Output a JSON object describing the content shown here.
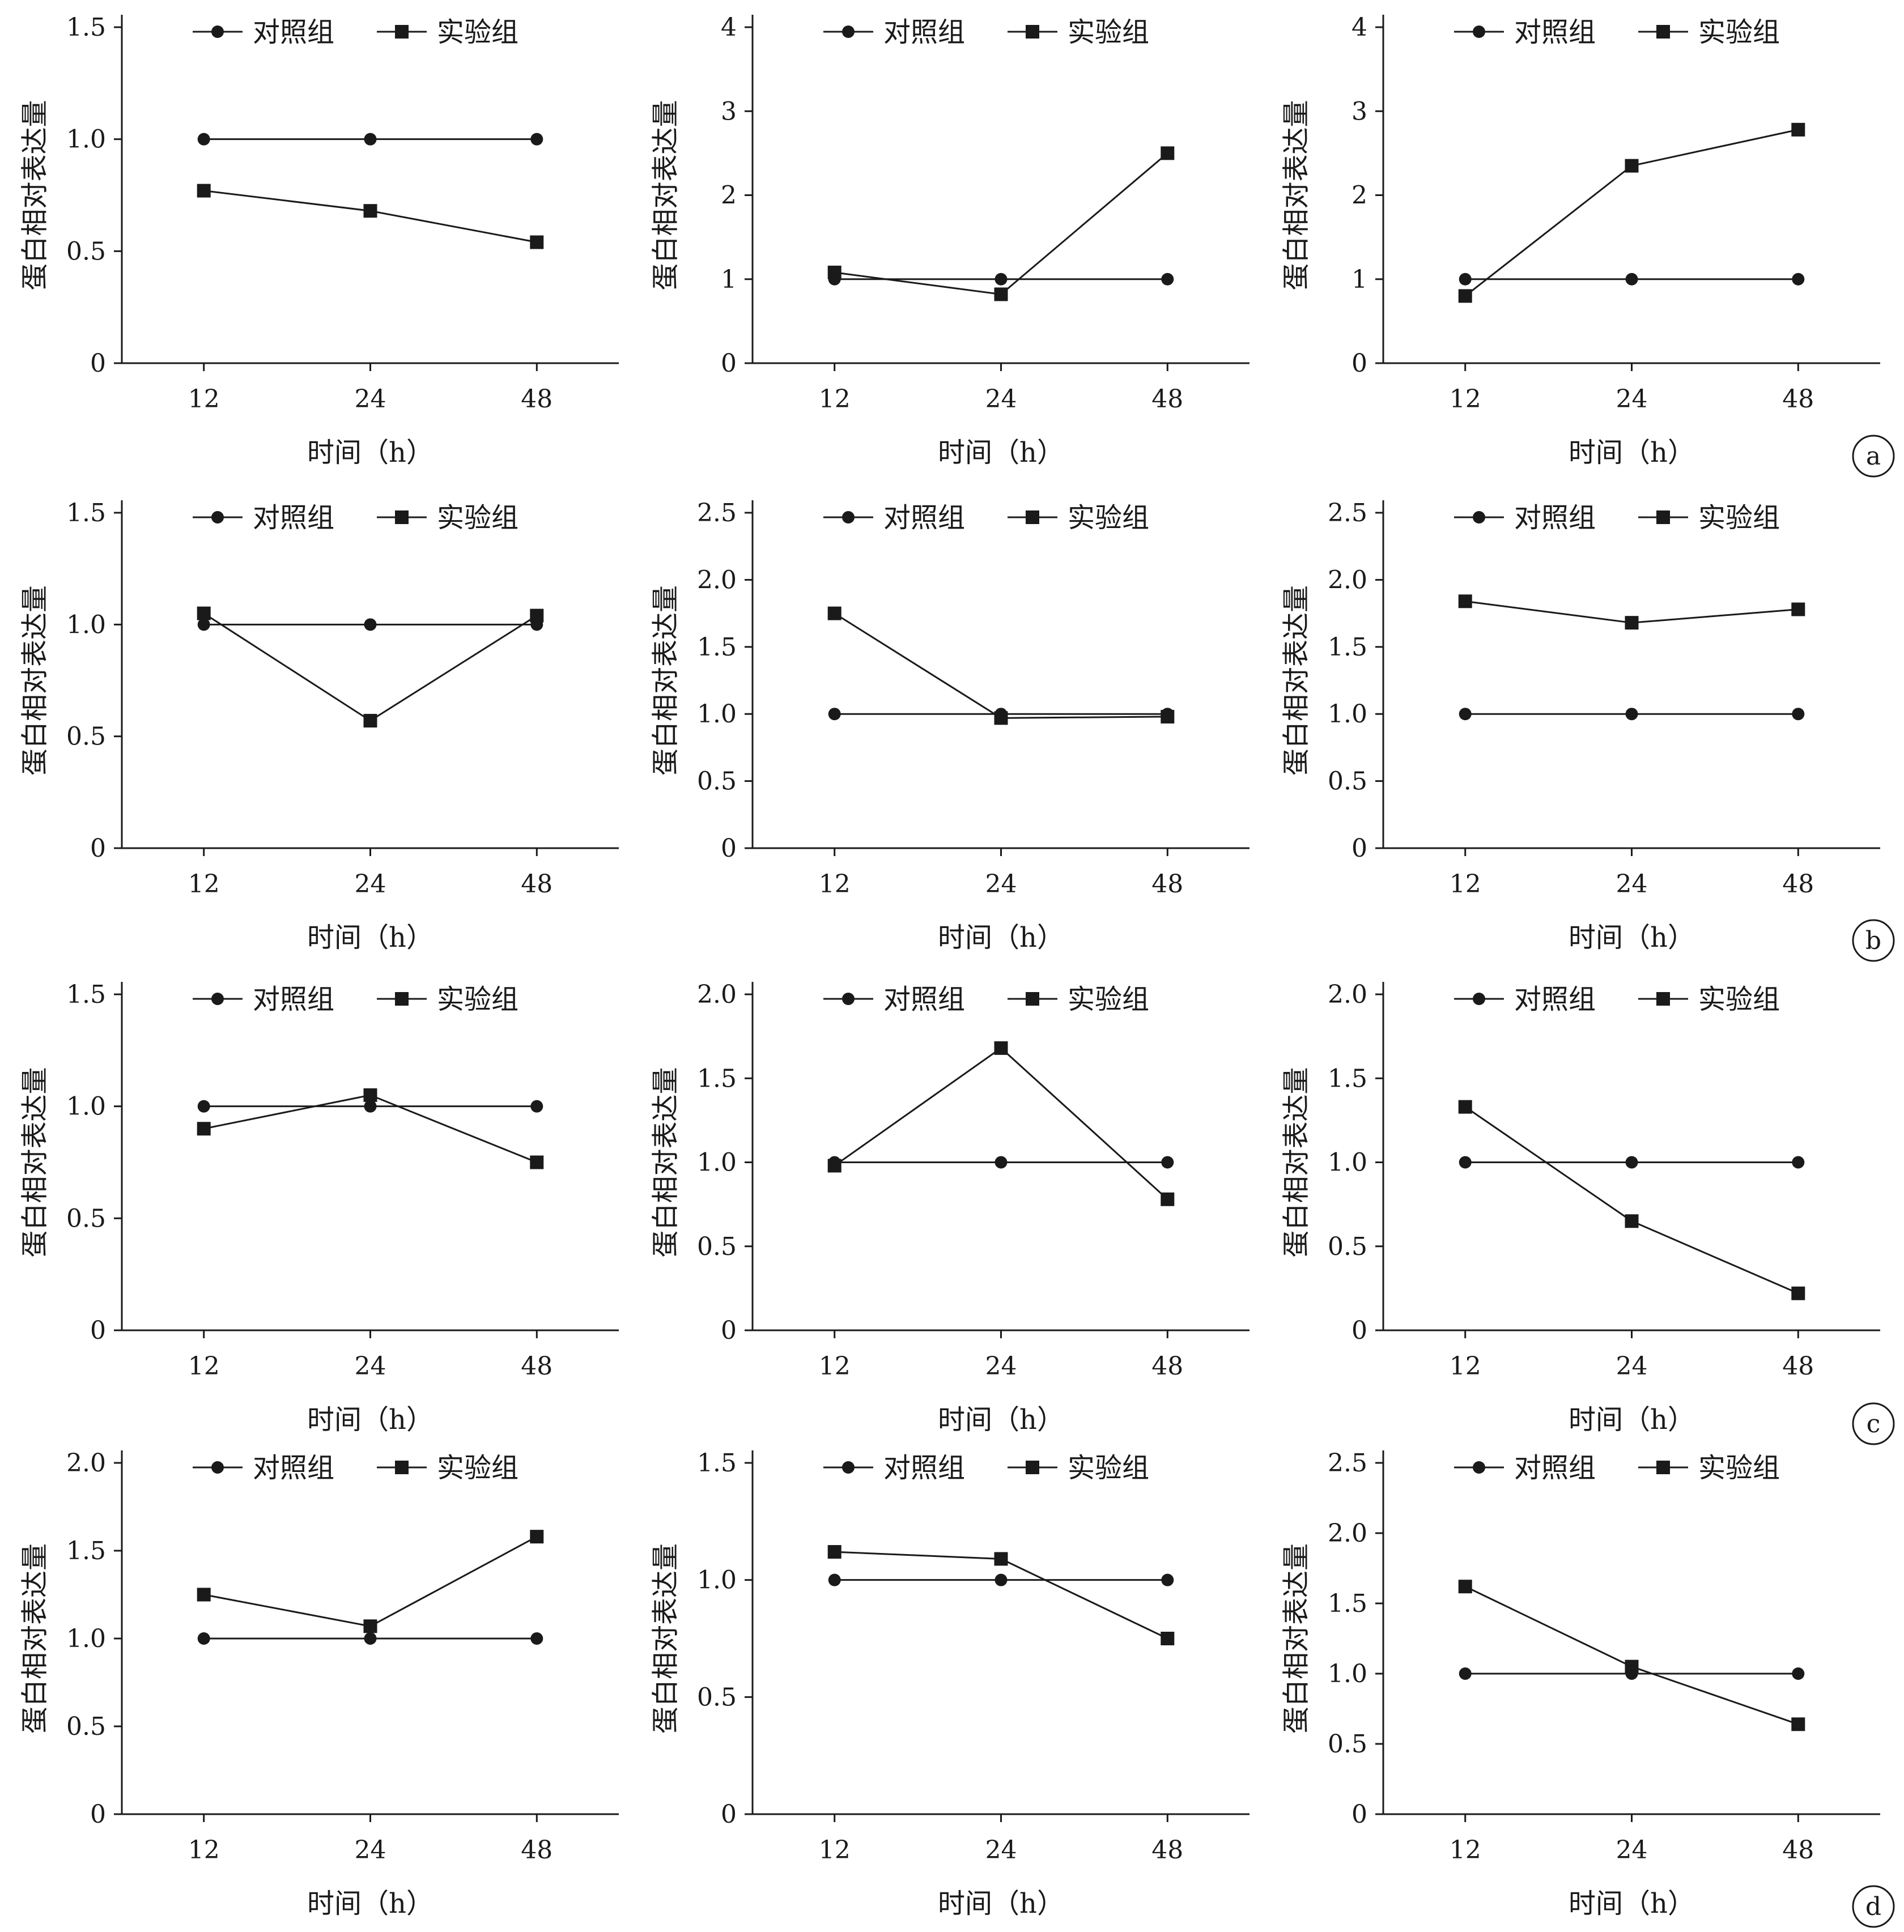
{
  "figure": {
    "panel_labels": [
      "a",
      "b",
      "c",
      "d"
    ]
  },
  "colors": {
    "ink": "#1a1a1a",
    "background": "#ffffff"
  },
  "chart_data": [
    {
      "type": "line",
      "row": 0,
      "col": 0,
      "x": [
        12,
        24,
        48
      ],
      "categories": [
        "12",
        "24",
        "48"
      ],
      "xlabel": "时间（h）",
      "ylabel": "蛋白相对表达量",
      "ylim": [
        0,
        1.5
      ],
      "yticks": [
        "0",
        "0.5",
        "1.0",
        "1.5"
      ],
      "ytick_values": [
        0,
        0.5,
        1.0,
        1.5
      ],
      "legend_position": "top",
      "series": [
        {
          "name": "对照组",
          "marker": "circle",
          "values": [
            1.0,
            1.0,
            1.0
          ]
        },
        {
          "name": "实验组",
          "marker": "square",
          "values": [
            0.77,
            0.68,
            0.54
          ]
        }
      ]
    },
    {
      "type": "line",
      "row": 0,
      "col": 1,
      "x": [
        12,
        24,
        48
      ],
      "categories": [
        "12",
        "24",
        "48"
      ],
      "xlabel": "时间（h）",
      "ylabel": "蛋白相对表达量",
      "ylim": [
        0,
        4
      ],
      "yticks": [
        "0",
        "1",
        "2",
        "3",
        "4"
      ],
      "ytick_values": [
        0,
        1,
        2,
        3,
        4
      ],
      "legend_position": "top",
      "series": [
        {
          "name": "对照组",
          "marker": "circle",
          "values": [
            1.0,
            1.0,
            1.0
          ]
        },
        {
          "name": "实验组",
          "marker": "square",
          "values": [
            1.08,
            0.82,
            2.5
          ]
        }
      ]
    },
    {
      "type": "line",
      "row": 0,
      "col": 2,
      "x": [
        12,
        24,
        48
      ],
      "categories": [
        "12",
        "24",
        "48"
      ],
      "xlabel": "时间（h）",
      "ylabel": "蛋白相对表达量",
      "ylim": [
        0,
        4
      ],
      "yticks": [
        "0",
        "1",
        "2",
        "3",
        "4"
      ],
      "ytick_values": [
        0,
        1,
        2,
        3,
        4
      ],
      "legend_position": "top",
      "series": [
        {
          "name": "对照组",
          "marker": "circle",
          "values": [
            1.0,
            1.0,
            1.0
          ]
        },
        {
          "name": "实验组",
          "marker": "square",
          "values": [
            0.8,
            2.35,
            2.78
          ]
        }
      ]
    },
    {
      "type": "line",
      "row": 1,
      "col": 0,
      "x": [
        12,
        24,
        48
      ],
      "categories": [
        "12",
        "24",
        "48"
      ],
      "xlabel": "时间（h）",
      "ylabel": "蛋白相对表达量",
      "ylim": [
        0,
        1.5
      ],
      "yticks": [
        "0",
        "0.5",
        "1.0",
        "1.5"
      ],
      "ytick_values": [
        0,
        0.5,
        1.0,
        1.5
      ],
      "legend_position": "top",
      "series": [
        {
          "name": "对照组",
          "marker": "circle",
          "values": [
            1.0,
            1.0,
            1.0
          ]
        },
        {
          "name": "实验组",
          "marker": "square",
          "values": [
            1.05,
            0.57,
            1.04
          ]
        }
      ]
    },
    {
      "type": "line",
      "row": 1,
      "col": 1,
      "x": [
        12,
        24,
        48
      ],
      "categories": [
        "12",
        "24",
        "48"
      ],
      "xlabel": "时间（h）",
      "ylabel": "蛋白相对表达量",
      "ylim": [
        0,
        2.5
      ],
      "yticks": [
        "0",
        "0.5",
        "1.0",
        "1.5",
        "2.0",
        "2.5"
      ],
      "ytick_values": [
        0,
        0.5,
        1.0,
        1.5,
        2.0,
        2.5
      ],
      "legend_position": "top",
      "series": [
        {
          "name": "对照组",
          "marker": "circle",
          "values": [
            1.0,
            1.0,
            1.0
          ]
        },
        {
          "name": "实验组",
          "marker": "square",
          "values": [
            1.75,
            0.97,
            0.98
          ]
        }
      ]
    },
    {
      "type": "line",
      "row": 1,
      "col": 2,
      "x": [
        12,
        24,
        48
      ],
      "categories": [
        "12",
        "24",
        "48"
      ],
      "xlabel": "时间（h）",
      "ylabel": "蛋白相对表达量",
      "ylim": [
        0,
        2.5
      ],
      "yticks": [
        "0",
        "0.5",
        "1.0",
        "1.5",
        "2.0",
        "2.5"
      ],
      "ytick_values": [
        0,
        0.5,
        1.0,
        1.5,
        2.0,
        2.5
      ],
      "legend_position": "top",
      "series": [
        {
          "name": "对照组",
          "marker": "circle",
          "values": [
            1.0,
            1.0,
            1.0
          ]
        },
        {
          "name": "实验组",
          "marker": "square",
          "values": [
            1.84,
            1.68,
            1.78
          ]
        }
      ]
    },
    {
      "type": "line",
      "row": 2,
      "col": 0,
      "x": [
        12,
        24,
        48
      ],
      "categories": [
        "12",
        "24",
        "48"
      ],
      "xlabel": "时间（h）",
      "ylabel": "蛋白相对表达量",
      "ylim": [
        0,
        1.5
      ],
      "yticks": [
        "0",
        "0.5",
        "1.0",
        "1.5"
      ],
      "ytick_values": [
        0,
        0.5,
        1.0,
        1.5
      ],
      "legend_position": "top",
      "series": [
        {
          "name": "对照组",
          "marker": "circle",
          "values": [
            1.0,
            1.0,
            1.0
          ]
        },
        {
          "name": "实验组",
          "marker": "square",
          "values": [
            0.9,
            1.05,
            0.75
          ]
        }
      ]
    },
    {
      "type": "line",
      "row": 2,
      "col": 1,
      "x": [
        12,
        24,
        48
      ],
      "categories": [
        "12",
        "24",
        "48"
      ],
      "xlabel": "时间（h）",
      "ylabel": "蛋白相对表达量",
      "ylim": [
        0,
        2.0
      ],
      "yticks": [
        "0",
        "0.5",
        "1.0",
        "1.5",
        "2.0"
      ],
      "ytick_values": [
        0,
        0.5,
        1.0,
        1.5,
        2.0
      ],
      "legend_position": "top",
      "series": [
        {
          "name": "对照组",
          "marker": "circle",
          "values": [
            1.0,
            1.0,
            1.0
          ]
        },
        {
          "name": "实验组",
          "marker": "square",
          "values": [
            0.98,
            1.68,
            0.78
          ]
        }
      ]
    },
    {
      "type": "line",
      "row": 2,
      "col": 2,
      "x": [
        12,
        24,
        48
      ],
      "categories": [
        "12",
        "24",
        "48"
      ],
      "xlabel": "时间（h）",
      "ylabel": "蛋白相对表达量",
      "ylim": [
        0,
        2.0
      ],
      "yticks": [
        "0",
        "0.5",
        "1.0",
        "1.5",
        "2.0"
      ],
      "ytick_values": [
        0,
        0.5,
        1.0,
        1.5,
        2.0
      ],
      "legend_position": "top",
      "series": [
        {
          "name": "对照组",
          "marker": "circle",
          "values": [
            1.0,
            1.0,
            1.0
          ]
        },
        {
          "name": "实验组",
          "marker": "square",
          "values": [
            1.33,
            0.65,
            0.22
          ]
        }
      ]
    },
    {
      "type": "line",
      "row": 3,
      "col": 0,
      "x": [
        12,
        24,
        48
      ],
      "categories": [
        "12",
        "24",
        "48"
      ],
      "xlabel": "时间（h）",
      "ylabel": "蛋白相对表达量",
      "ylim": [
        0,
        2.0
      ],
      "yticks": [
        "0",
        "0.5",
        "1.0",
        "1.5",
        "2.0"
      ],
      "ytick_values": [
        0,
        0.5,
        1.0,
        1.5,
        2.0
      ],
      "legend_position": "top",
      "series": [
        {
          "name": "对照组",
          "marker": "circle",
          "values": [
            1.0,
            1.0,
            1.0
          ]
        },
        {
          "name": "实验组",
          "marker": "square",
          "values": [
            1.25,
            1.07,
            1.58
          ]
        }
      ]
    },
    {
      "type": "line",
      "row": 3,
      "col": 1,
      "x": [
        12,
        24,
        48
      ],
      "categories": [
        "12",
        "24",
        "48"
      ],
      "xlabel": "时间（h）",
      "ylabel": "蛋白相对表达量",
      "ylim": [
        0,
        1.5
      ],
      "yticks": [
        "0",
        "0.5",
        "1.0",
        "1.5"
      ],
      "ytick_values": [
        0,
        0.5,
        1.0,
        1.5
      ],
      "legend_position": "top",
      "series": [
        {
          "name": "对照组",
          "marker": "circle",
          "values": [
            1.0,
            1.0,
            1.0
          ]
        },
        {
          "name": "实验组",
          "marker": "square",
          "values": [
            1.12,
            1.09,
            0.75
          ]
        }
      ]
    },
    {
      "type": "line",
      "row": 3,
      "col": 2,
      "x": [
        12,
        24,
        48
      ],
      "categories": [
        "12",
        "24",
        "48"
      ],
      "xlabel": "时间（h）",
      "ylabel": "蛋白相对表达量",
      "ylim": [
        0,
        2.5
      ],
      "yticks": [
        "0",
        "0.5",
        "1.0",
        "1.5",
        "2.0",
        "2.5"
      ],
      "ytick_values": [
        0,
        0.5,
        1.0,
        1.5,
        2.0,
        2.5
      ],
      "legend_position": "top",
      "series": [
        {
          "name": "对照组",
          "marker": "circle",
          "values": [
            1.0,
            1.0,
            1.0
          ]
        },
        {
          "name": "实验组",
          "marker": "square",
          "values": [
            1.62,
            1.05,
            0.64
          ]
        }
      ]
    }
  ]
}
